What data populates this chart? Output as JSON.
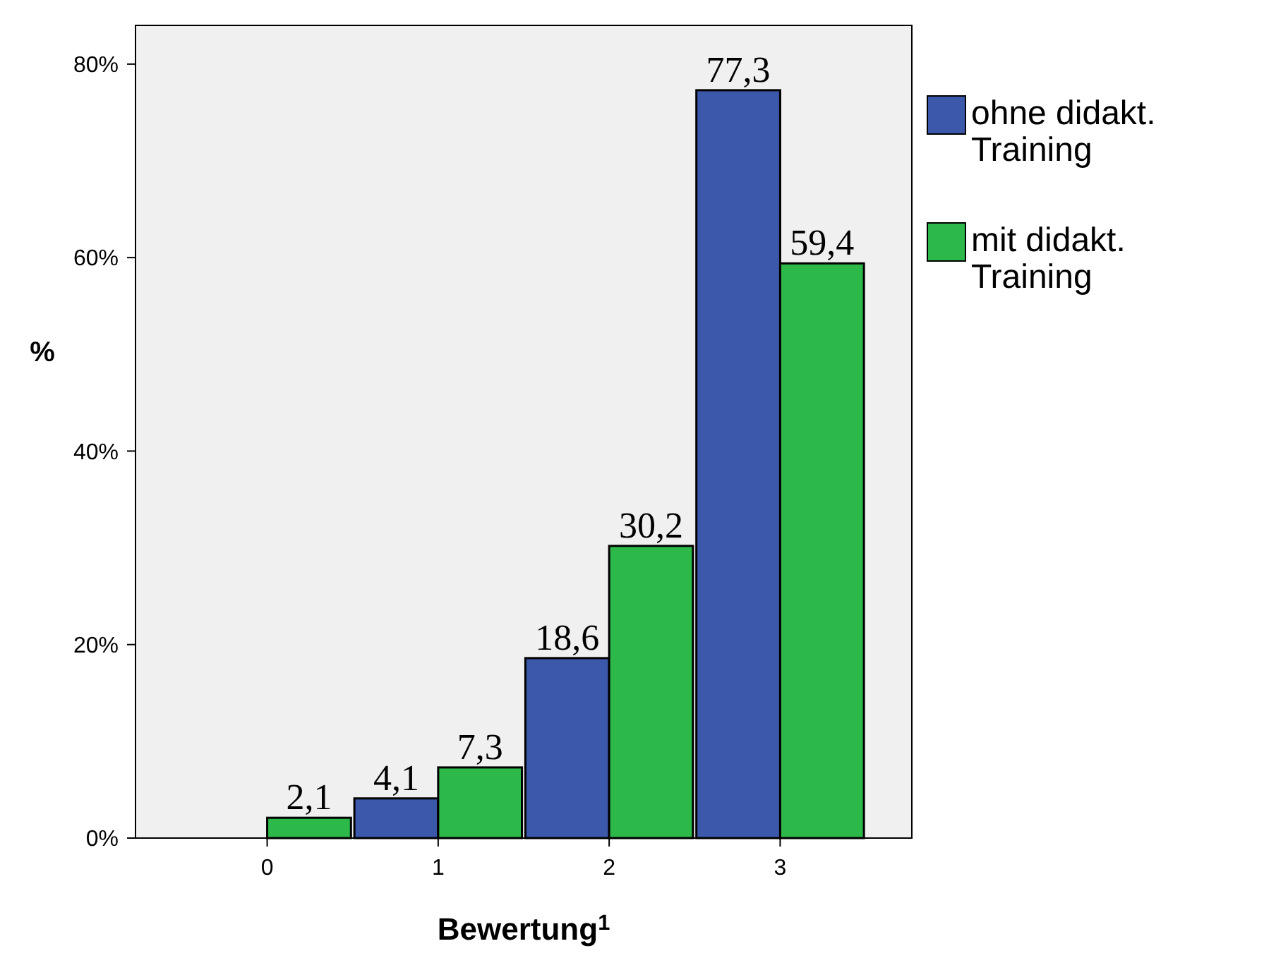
{
  "chart_data": {
    "type": "bar",
    "xlabel": "Bewertung$^{1}$",
    "ylabel": "%",
    "categories": [
      "0",
      "1",
      "2",
      "3"
    ],
    "series": [
      {
        "name": "ohne didakt. Training",
        "color": "#3c58ab",
        "values": [
          0,
          4.1,
          18.6,
          77.3
        ],
        "value_labels": [
          null,
          "4,1",
          "18,6",
          "77,3"
        ]
      },
      {
        "name": "mit didakt. Training",
        "color": "#2db84a",
        "values": [
          2.1,
          7.3,
          30.2,
          59.4
        ],
        "value_labels": [
          "2,1",
          "7,3",
          "30,2",
          "59,4"
        ]
      }
    ],
    "ylim": [
      0,
      84
    ],
    "yticks": [
      {
        "value": 0,
        "label": "0%"
      },
      {
        "value": 20,
        "label": "20%"
      },
      {
        "value": 40,
        "label": "40%"
      },
      {
        "value": 60,
        "label": "60%"
      },
      {
        "value": 80,
        "label": "80%"
      }
    ],
    "legend": "right",
    "grid": false
  }
}
